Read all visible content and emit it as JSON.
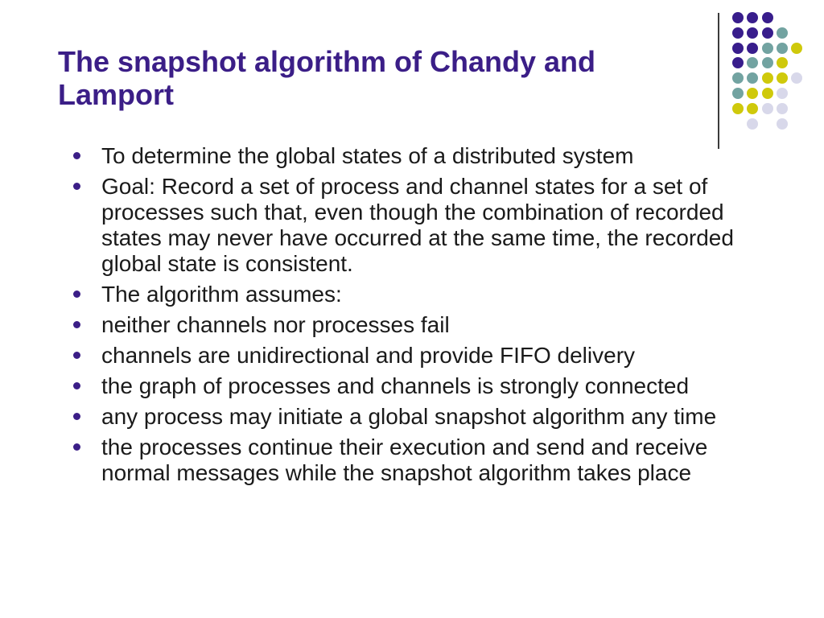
{
  "slide": {
    "background": "#FFFFFF",
    "title": "The snapshot algorithm of Chandy and Lamport",
    "title_color": "#3B1E87",
    "text_color": "#1A1A1A"
  },
  "bullets": [
    {
      "text": "To determine the global states of a distributed system"
    },
    {
      "text": "Goal: Record a set of process and channel states for a set of processes such that, even though the combination of recorded states may never have occurred at the same time, the recorded global state is consistent."
    },
    {
      "text": "The algorithm assumes:"
    },
    {
      "text": "neither channels nor processes fail"
    },
    {
      "text": "channels are unidirectional and provide FIFO delivery"
    },
    {
      "text": "the graph of processes and channels is strongly connected"
    },
    {
      "text": "any process may initiate a global snapshot algorithm any time"
    },
    {
      "text": "the processes continue their execution and send and receive normal messages while the snapshot algorithm takes place"
    }
  ],
  "decoration": {
    "line_color": "#3B3B3B",
    "bullet_color": "#3B1E87",
    "dot_palette": {
      "purple": "#381D8C",
      "teal": "#72A3A1",
      "yellow": "#CFC90B",
      "lavender": "#D8D8EA"
    },
    "dot_grid": [
      [
        "purple",
        "purple",
        "purple",
        null,
        null
      ],
      [
        "purple",
        "purple",
        "purple",
        "teal",
        null
      ],
      [
        "purple",
        "purple",
        "teal",
        "teal",
        "yellow"
      ],
      [
        "purple",
        "teal",
        "teal",
        "yellow",
        null
      ],
      [
        "teal",
        "teal",
        "yellow",
        "yellow",
        "lavender"
      ],
      [
        "teal",
        "yellow",
        "yellow",
        "lavender",
        null
      ],
      [
        "yellow",
        "yellow",
        "lavender",
        "lavender",
        null
      ],
      [
        null,
        "lavender",
        null,
        "lavender",
        null
      ]
    ]
  }
}
